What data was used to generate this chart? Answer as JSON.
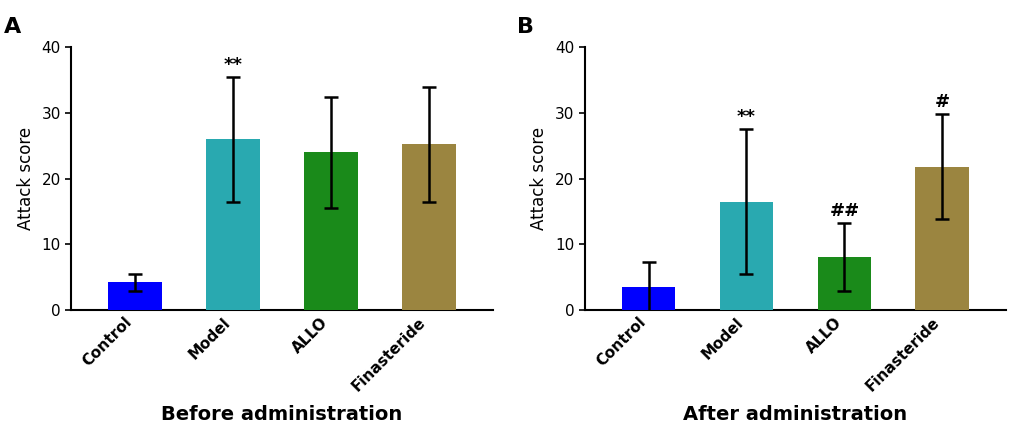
{
  "panel_A": {
    "title": "A",
    "xlabel": "Before administration",
    "ylabel": "Attack score",
    "categories": [
      "Control",
      "Model",
      "ALLO",
      "Finasteride"
    ],
    "values": [
      4.2,
      26.0,
      24.0,
      25.2
    ],
    "errors": [
      1.3,
      9.5,
      8.5,
      8.8
    ],
    "colors": [
      "#0000ff",
      "#29a9b0",
      "#1a8a1a",
      "#9b8540"
    ],
    "annotations": [
      "",
      "**",
      "",
      ""
    ],
    "ylim": [
      0,
      40
    ],
    "yticks": [
      0,
      10,
      20,
      30,
      40
    ]
  },
  "panel_B": {
    "title": "B",
    "xlabel": "After administration",
    "ylabel": "Attack score",
    "categories": [
      "Control",
      "Model",
      "ALLO",
      "Finasteride"
    ],
    "values": [
      3.5,
      16.5,
      8.0,
      21.8
    ],
    "errors": [
      3.8,
      11.0,
      5.2,
      8.0
    ],
    "colors": [
      "#0000ff",
      "#29a9b0",
      "#1a8a1a",
      "#9b8540"
    ],
    "annotations": [
      "",
      "**",
      "##",
      "#"
    ],
    "ylim": [
      0,
      40
    ],
    "yticks": [
      0,
      10,
      20,
      30,
      40
    ]
  },
  "bar_width": 0.55,
  "capsize": 5,
  "annotation_fontsize": 13,
  "axis_label_fontsize": 12,
  "tick_fontsize": 11,
  "xlabel_fontsize": 14,
  "title_fontsize": 16
}
